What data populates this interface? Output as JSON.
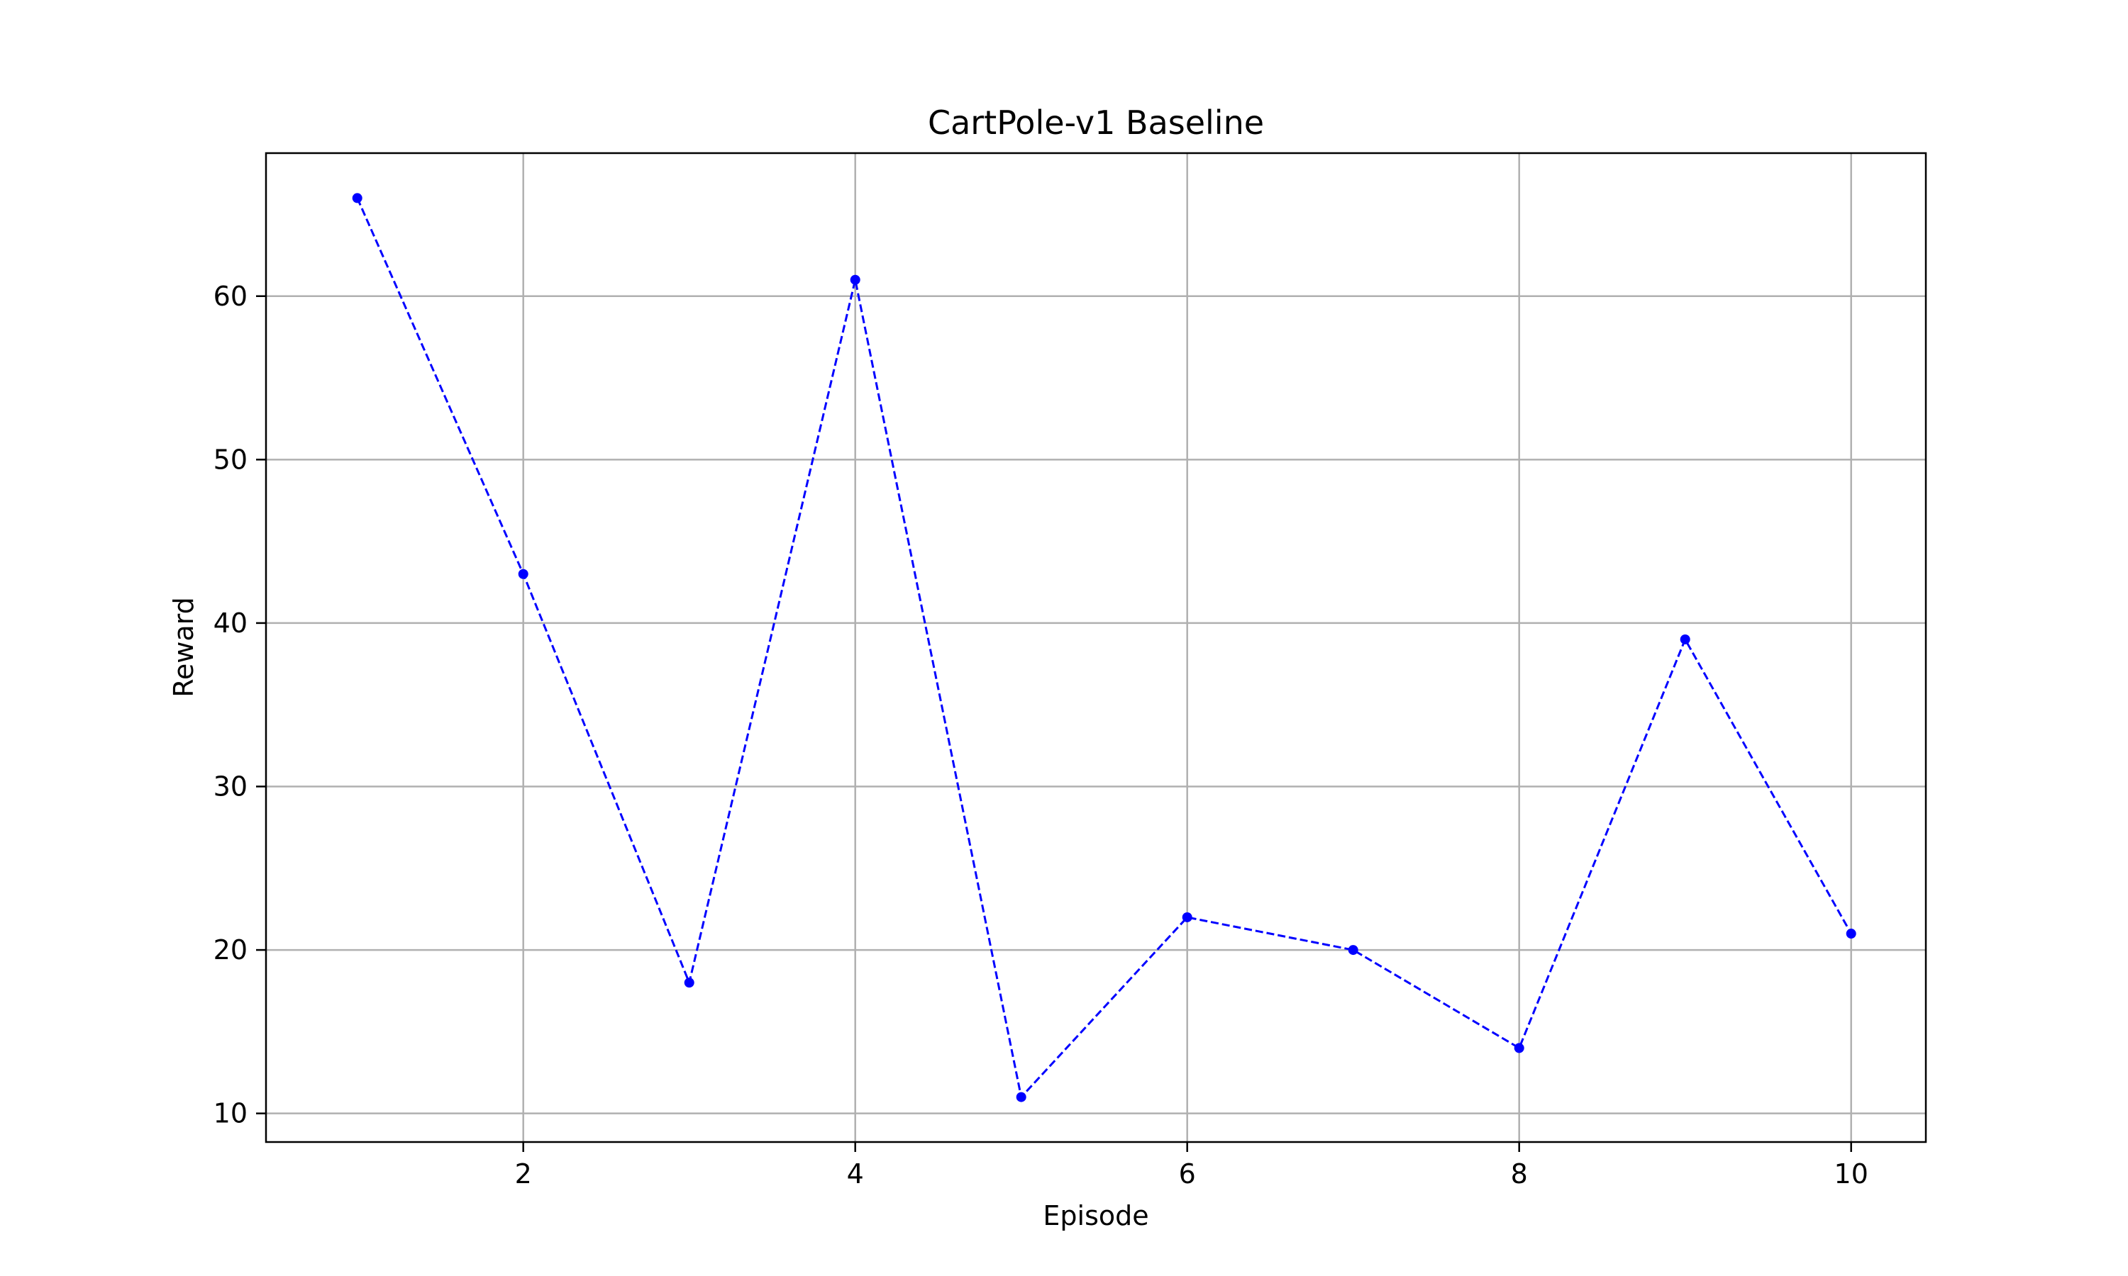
{
  "chart_data": {
    "type": "line",
    "title": "CartPole-v1 Baseline",
    "xlabel": "Episode",
    "ylabel": "Reward",
    "x": [
      1,
      2,
      3,
      4,
      5,
      6,
      7,
      8,
      9,
      10
    ],
    "series": [
      {
        "values": [
          66,
          43,
          18,
          61,
          11,
          22,
          20,
          14,
          39,
          21
        ]
      }
    ],
    "xlim": [
      0.45,
      10.45
    ],
    "ylim": [
      8.25,
      68.75
    ],
    "xticks": [
      2,
      4,
      6,
      8,
      10
    ],
    "yticks": [
      10,
      20,
      30,
      40,
      50,
      60
    ],
    "grid": true,
    "line_style": "dashed",
    "marker": "circle",
    "colors": {
      "line": "#0000ff",
      "grid": "#b0b0b0",
      "axes": "#000000"
    }
  }
}
